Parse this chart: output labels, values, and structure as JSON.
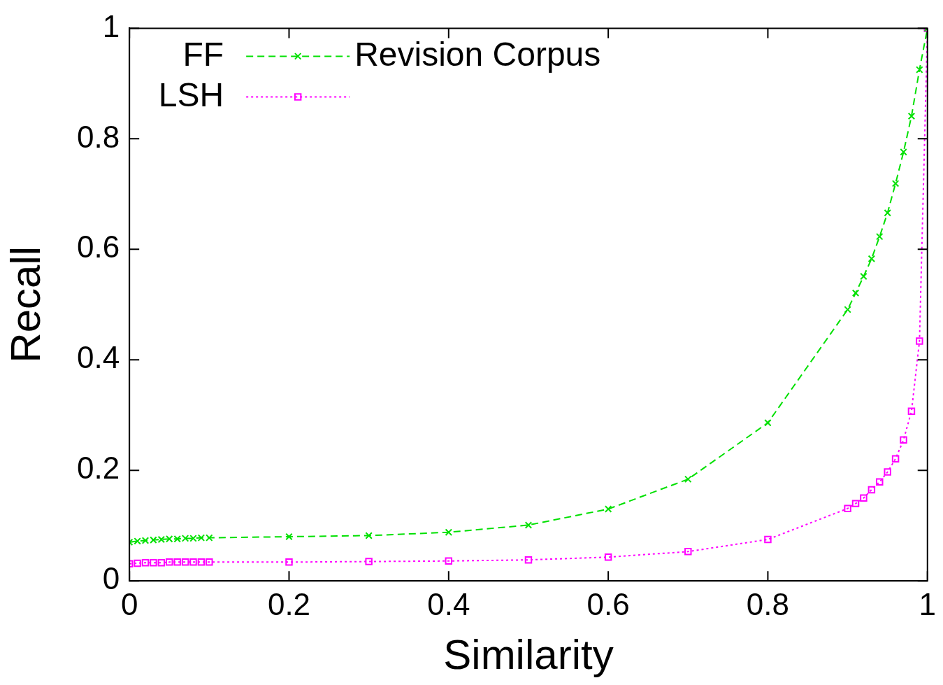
{
  "chart_data": {
    "type": "line",
    "title": "Revision Corpus",
    "xlabel": "Similarity",
    "ylabel": "Recall",
    "xlim": [
      0,
      1
    ],
    "ylim": [
      0,
      1
    ],
    "xticks": [
      0,
      0.2,
      0.4,
      0.6,
      0.8,
      1
    ],
    "yticks": [
      0,
      0.2,
      0.4,
      0.6,
      0.8,
      1
    ],
    "grid": false,
    "legend": "top left",
    "series": [
      {
        "name": "FF",
        "color": "#00e000",
        "marker": "cross",
        "line_style": "dashed",
        "x": [
          0,
          0.01,
          0.02,
          0.03,
          0.04,
          0.05,
          0.06,
          0.07,
          0.08,
          0.09,
          0.1,
          0.2,
          0.3,
          0.4,
          0.5,
          0.6,
          0.7,
          0.8,
          0.9,
          0.91,
          0.92,
          0.93,
          0.94,
          0.95,
          0.96,
          0.97,
          0.98,
          0.99,
          1
        ],
        "values": [
          0.07,
          0.072,
          0.073,
          0.074,
          0.075,
          0.076,
          0.076,
          0.077,
          0.077,
          0.078,
          0.078,
          0.08,
          0.082,
          0.088,
          0.101,
          0.13,
          0.184,
          0.286,
          0.491,
          0.521,
          0.551,
          0.583,
          0.623,
          0.666,
          0.719,
          0.776,
          0.841,
          0.925,
          1
        ]
      },
      {
        "name": "LSH",
        "color": "#ff00ff",
        "marker": "square",
        "line_style": "dotted",
        "x": [
          0,
          0.01,
          0.02,
          0.03,
          0.04,
          0.05,
          0.06,
          0.07,
          0.08,
          0.09,
          0.1,
          0.2,
          0.3,
          0.4,
          0.5,
          0.6,
          0.7,
          0.8,
          0.9,
          0.91,
          0.92,
          0.93,
          0.94,
          0.95,
          0.96,
          0.97,
          0.98,
          0.99,
          1
        ],
        "values": [
          0.031,
          0.032,
          0.033,
          0.033,
          0.033,
          0.034,
          0.034,
          0.034,
          0.034,
          0.034,
          0.034,
          0.034,
          0.035,
          0.036,
          0.038,
          0.043,
          0.053,
          0.075,
          0.131,
          0.14,
          0.15,
          0.165,
          0.179,
          0.197,
          0.221,
          0.255,
          0.307,
          0.434,
          1
        ]
      }
    ]
  }
}
